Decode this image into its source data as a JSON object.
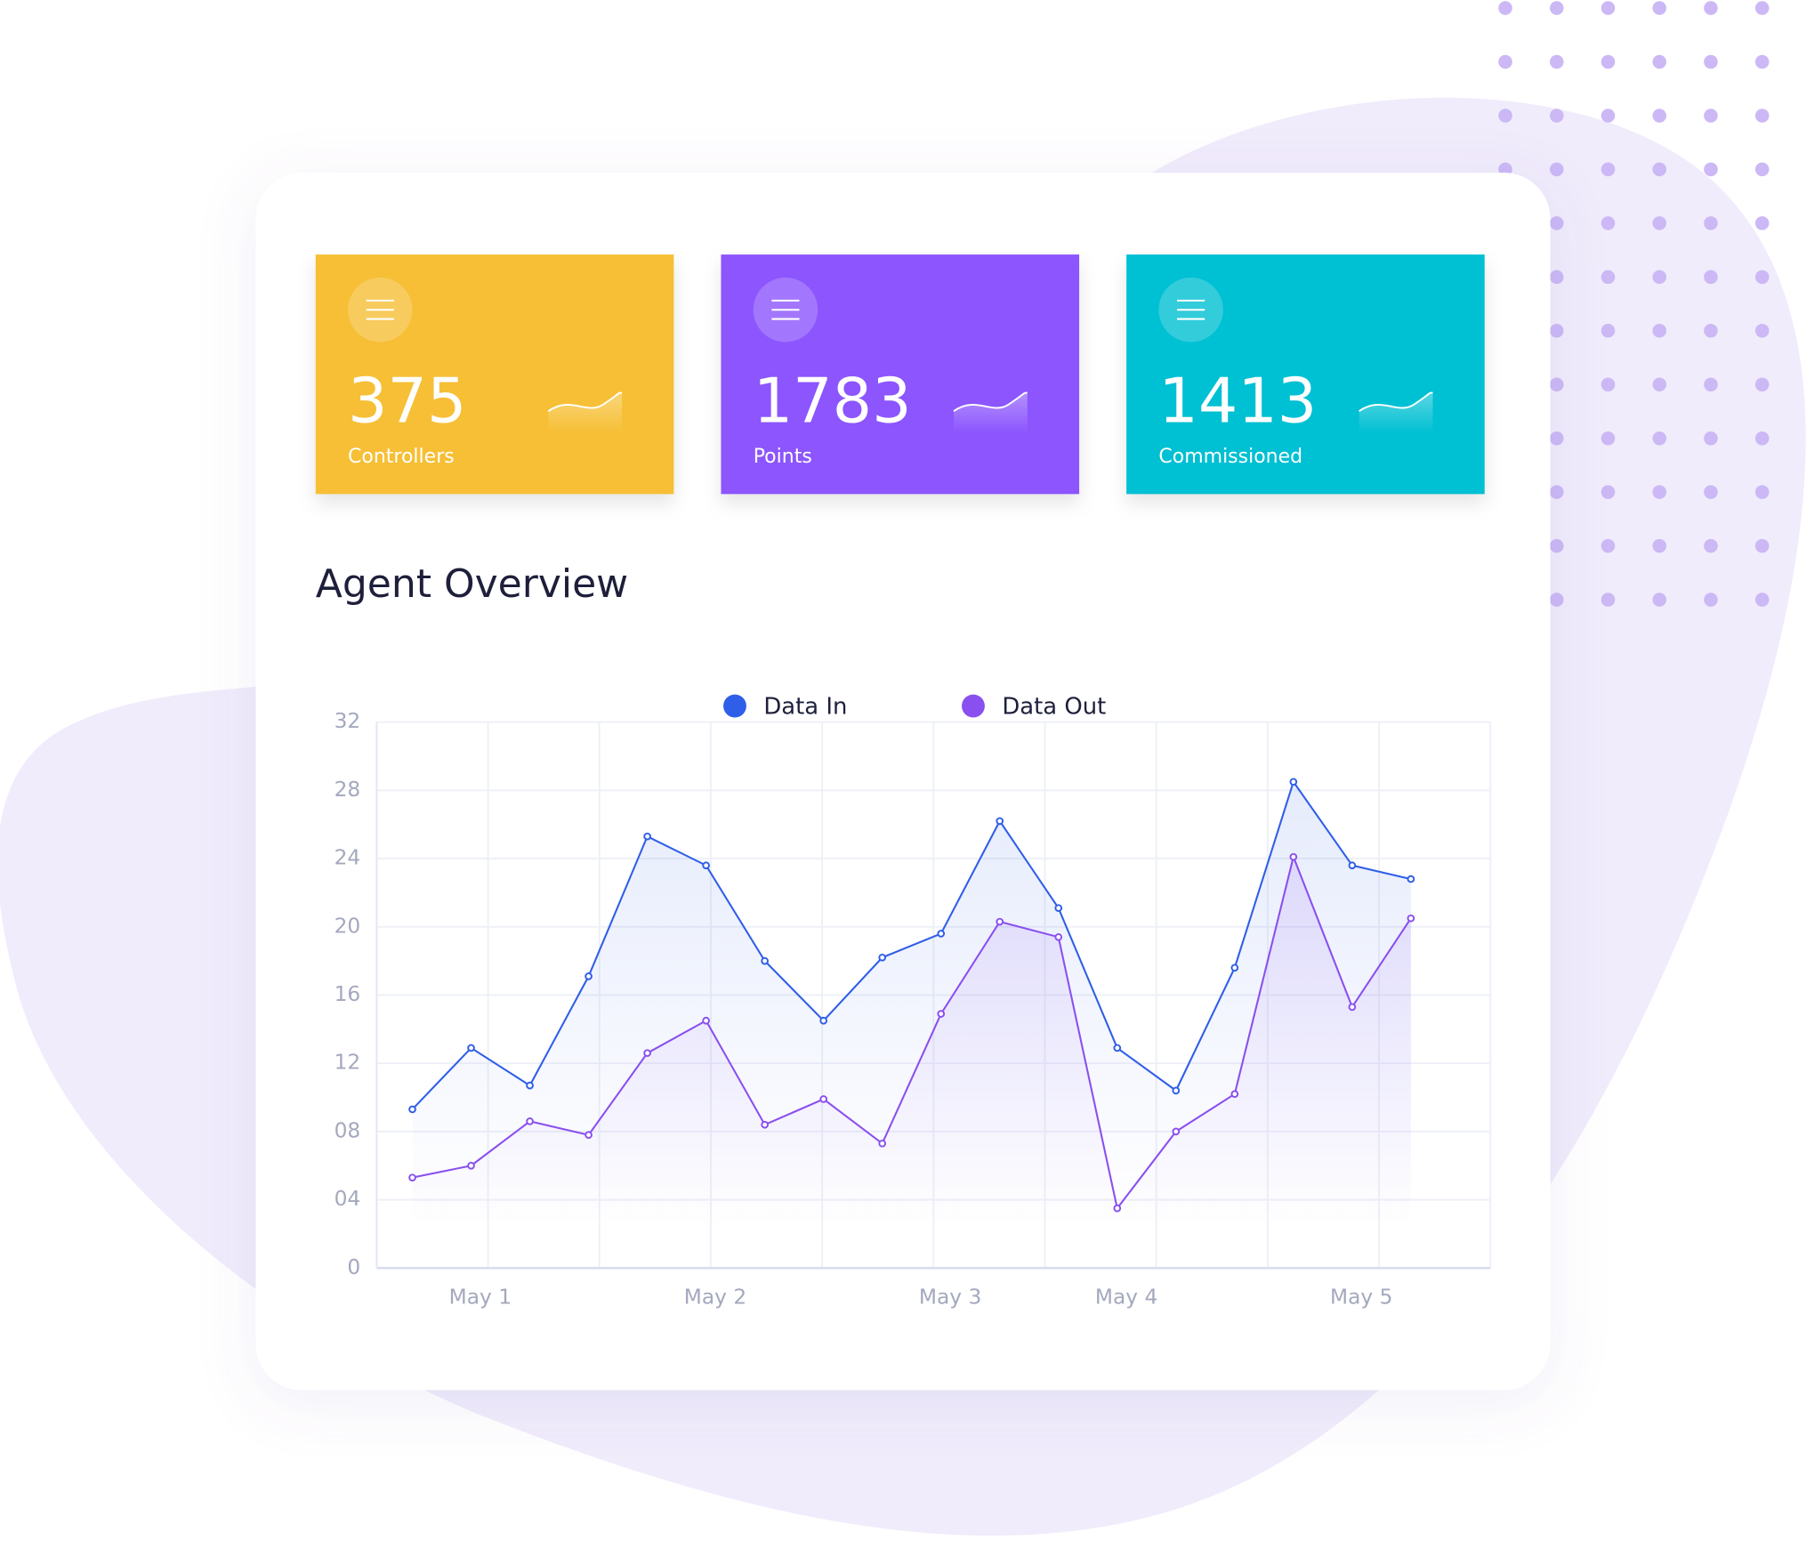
{
  "cards": [
    {
      "value": 375,
      "label": "Controllers",
      "color": "#f6bf36"
    },
    {
      "value": 1783,
      "label": "Points",
      "color": "#8c55fd"
    },
    {
      "value": 1413,
      "label": "Commissioned",
      "color": "#02c0d3"
    }
  ],
  "chart_data": {
    "type": "line",
    "title": "Agent Overview",
    "categories": [
      null,
      "May 1",
      null,
      null,
      null,
      "May 2",
      null,
      null,
      null,
      "May 3",
      null,
      null,
      "May 4",
      null,
      null,
      null,
      "May 5",
      null
    ],
    "series": [
      {
        "name": "Data In",
        "color": "#2f5ee8",
        "values": [
          9.3,
          12.9,
          10.7,
          17.1,
          25.3,
          23.6,
          18.0,
          14.5,
          18.2,
          19.6,
          26.2,
          21.1,
          12.9,
          10.4,
          17.6,
          28.5,
          23.6,
          22.8
        ]
      },
      {
        "name": "Data Out",
        "color": "#8a4fef",
        "values": [
          5.3,
          6.0,
          8.6,
          7.8,
          12.6,
          14.5,
          8.4,
          9.9,
          7.3,
          14.9,
          20.3,
          19.4,
          3.5,
          8.0,
          10.2,
          24.1,
          15.3,
          20.5
        ]
      }
    ],
    "ylim": [
      0,
      32
    ],
    "yticks": [
      0,
      {
        "value": 4,
        "label": "04"
      },
      {
        "value": 8,
        "label": "08"
      },
      12,
      16,
      20,
      24,
      28,
      32
    ],
    "grid": true,
    "legend": "top"
  }
}
